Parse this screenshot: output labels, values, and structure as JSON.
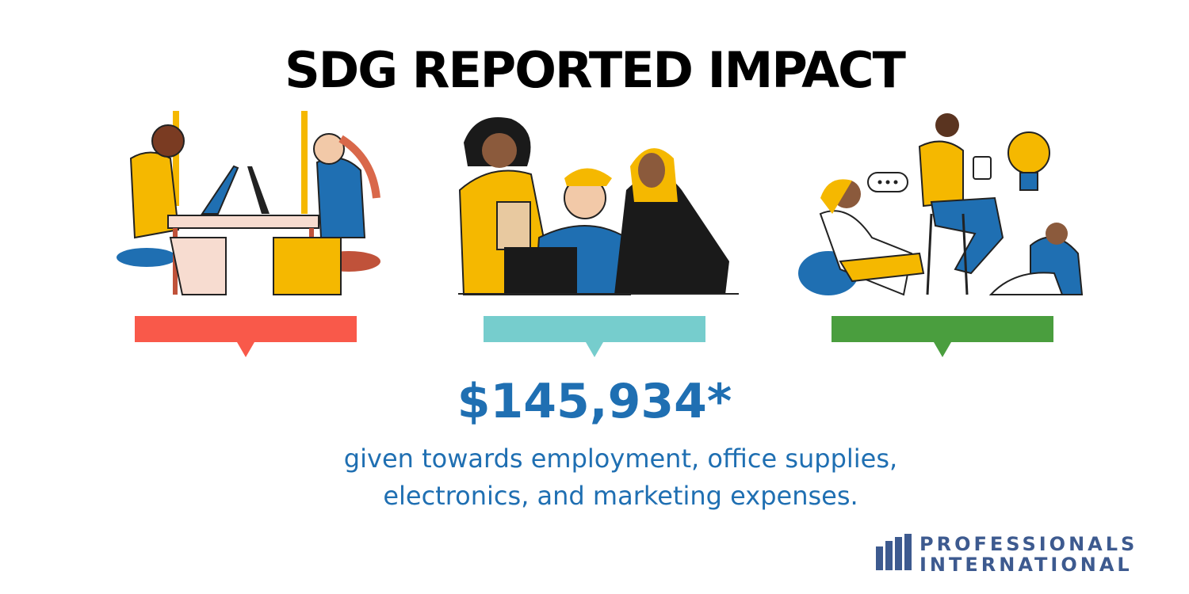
{
  "header": {
    "title": "SDG REPORTED IMPACT"
  },
  "highlight": {
    "amount": "$145,934*",
    "description": [
      "given towards employment, office supplies,",
      "electronics, and marketing expenses."
    ]
  },
  "logo": {
    "line1": "PROFESSIONALS",
    "line2": "INTERNATIONAL"
  }
}
